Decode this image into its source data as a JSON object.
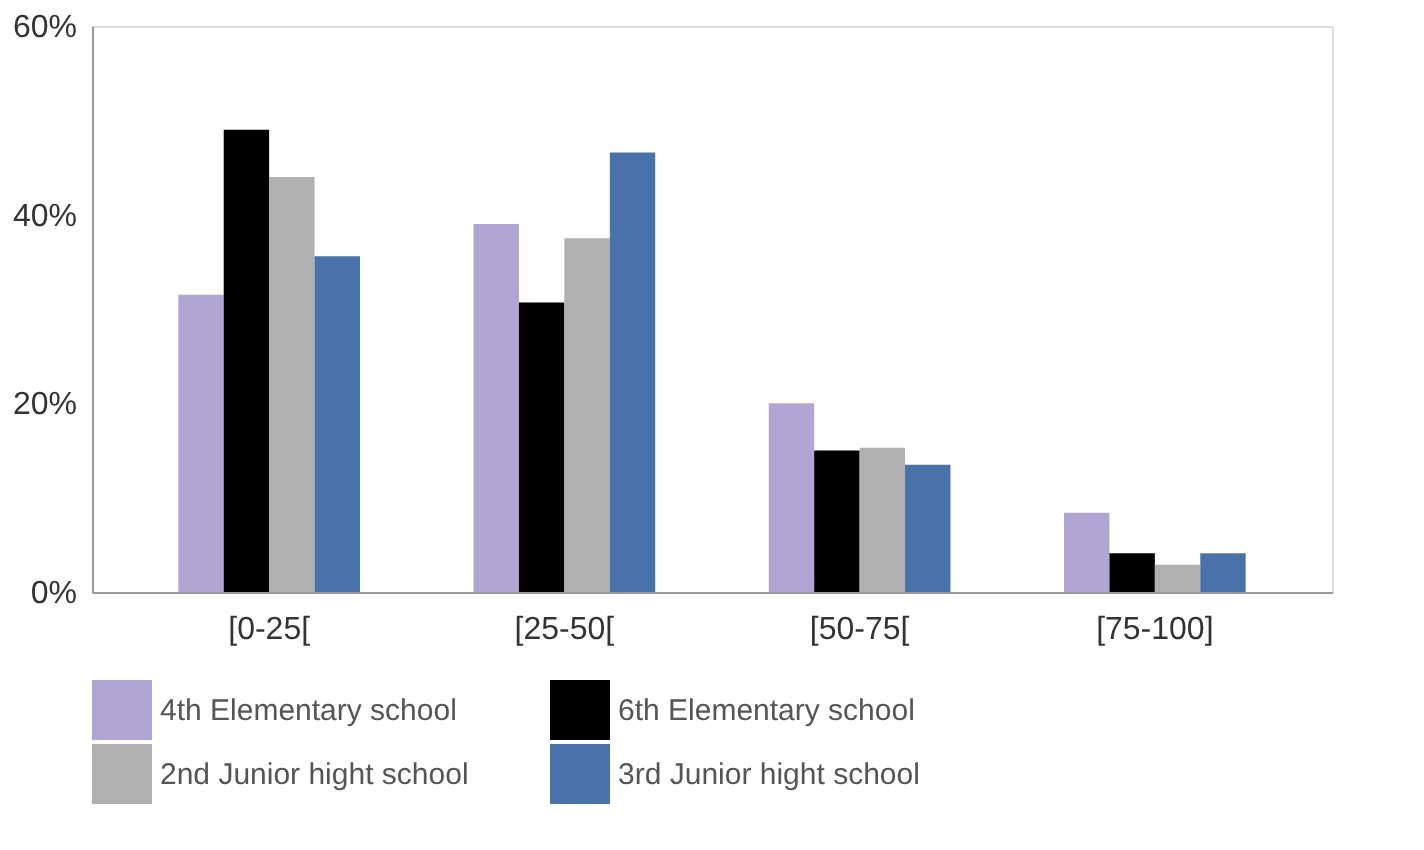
{
  "chart_data": {
    "type": "bar",
    "categories": [
      "[0-25[",
      "[25-50[",
      "[50-75[",
      "[75-100]"
    ],
    "series": [
      {
        "name": "4th Elementary school",
        "color": "#b1a6d3",
        "values": [
          31.5,
          39,
          20,
          8.4
        ]
      },
      {
        "name": "6th Elementary school",
        "color": "#000000",
        "values": [
          49,
          30.7,
          15,
          4.1
        ]
      },
      {
        "name": "2nd Junior hight school",
        "color": "#b0b0b0",
        "values": [
          44,
          37.5,
          15.3,
          2.9
        ]
      },
      {
        "name": "3rd Junior hight school",
        "color": "#4a72aa",
        "values": [
          35.6,
          46.6,
          13.5,
          4.1
        ]
      }
    ],
    "ylim": [
      0,
      60
    ],
    "yticks": [
      {
        "value": 0,
        "label": "0%"
      },
      {
        "value": 20,
        "label": "20%"
      },
      {
        "value": 40,
        "label": "40%"
      },
      {
        "value": 60,
        "label": "60%"
      }
    ],
    "grid": false,
    "legend": "bottom"
  }
}
